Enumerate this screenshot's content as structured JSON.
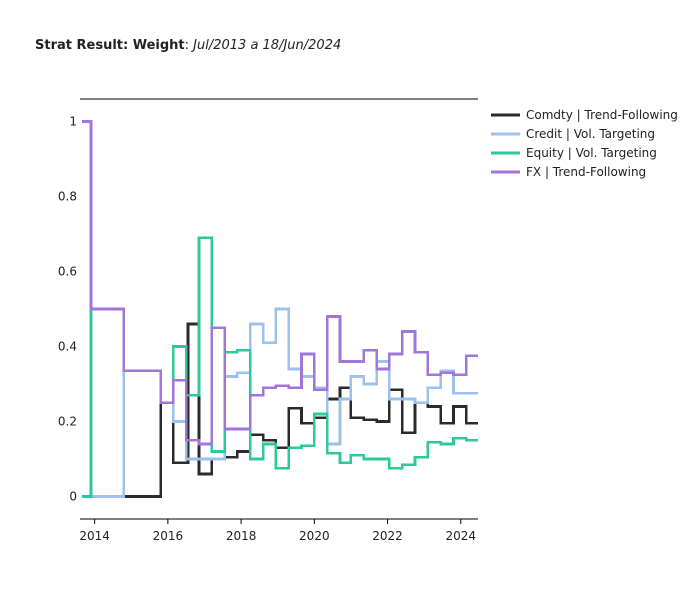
{
  "chart_data": {
    "type": "line",
    "line_shape": "step",
    "title": "Strat Result: Weight",
    "title_separator": ": ",
    "subtitle": "Jul/2013 a 18/Jun/2024",
    "xlabel": "",
    "ylabel": "",
    "xlim": [
      2013.6,
      2024.47
    ],
    "ylim": [
      -0.06,
      1.06
    ],
    "x_ticks": [
      2014,
      2016,
      2018,
      2020,
      2022,
      2024
    ],
    "y_ticks": [
      0,
      0.2,
      0.4,
      0.6,
      0.8,
      1
    ],
    "y_tick_labels": [
      "0",
      "0.2",
      "0.4",
      "0.6",
      "0.8",
      "1"
    ],
    "grid": false,
    "legend_position": "top-right",
    "series": [
      {
        "name": "Comdty | Trend-Following",
        "color": "#2b2b2b",
        "x": [
          2013.65,
          2014.8,
          2015.8,
          2016.15,
          2016.55,
          2016.85,
          2017.2,
          2017.55,
          2017.9,
          2018.25,
          2018.6,
          2018.95,
          2019.3,
          2019.65,
          2020.0,
          2020.35,
          2020.7,
          2021.0,
          2021.35,
          2021.7,
          2022.05,
          2022.4,
          2022.75,
          2023.1,
          2023.45,
          2023.8,
          2024.15,
          2024.45
        ],
        "y": [
          0,
          0,
          0.25,
          0.09,
          0.46,
          0.06,
          0.1,
          0.105,
          0.12,
          0.165,
          0.15,
          0.13,
          0.235,
          0.195,
          0.21,
          0.26,
          0.29,
          0.21,
          0.205,
          0.2,
          0.285,
          0.17,
          0.25,
          0.24,
          0.195,
          0.24,
          0.195,
          0.195
        ]
      },
      {
        "name": "Credit | Vol. Targeting",
        "color": "#9ec0ec",
        "x": [
          2013.65,
          2014.8,
          2015.8,
          2016.15,
          2016.5,
          2016.85,
          2017.2,
          2017.55,
          2017.9,
          2018.25,
          2018.6,
          2018.95,
          2019.3,
          2019.65,
          2020.0,
          2020.35,
          2020.7,
          2021.0,
          2021.35,
          2021.7,
          2022.05,
          2022.4,
          2022.75,
          2023.1,
          2023.45,
          2023.8,
          2024.15,
          2024.45
        ],
        "y": [
          0,
          0.335,
          0.25,
          0.2,
          0.1,
          0.1,
          0.1,
          0.32,
          0.33,
          0.46,
          0.41,
          0.5,
          0.34,
          0.32,
          0.29,
          0.14,
          0.26,
          0.32,
          0.3,
          0.36,
          0.26,
          0.26,
          0.25,
          0.29,
          0.335,
          0.275,
          0.275,
          0.275
        ]
      },
      {
        "name": "Equity | Vol. Targeting",
        "color": "#2ec89a",
        "x": [
          2013.65,
          2013.9,
          2014.8,
          2015.8,
          2016.15,
          2016.5,
          2016.85,
          2017.2,
          2017.55,
          2017.9,
          2018.25,
          2018.6,
          2018.95,
          2019.3,
          2019.65,
          2020.0,
          2020.35,
          2020.7,
          2021.0,
          2021.35,
          2021.7,
          2022.05,
          2022.4,
          2022.75,
          2023.1,
          2023.45,
          2023.8,
          2024.15,
          2024.45
        ],
        "y": [
          0,
          0.5,
          0.335,
          0.25,
          0.4,
          0.27,
          0.69,
          0.12,
          0.385,
          0.39,
          0.1,
          0.14,
          0.075,
          0.13,
          0.135,
          0.22,
          0.115,
          0.09,
          0.11,
          0.1,
          0.1,
          0.075,
          0.085,
          0.105,
          0.145,
          0.14,
          0.155,
          0.15,
          0.15
        ]
      },
      {
        "name": "FX | Trend-Following",
        "color": "#a176db",
        "x": [
          2013.65,
          2013.9,
          2014.8,
          2015.8,
          2016.15,
          2016.5,
          2016.85,
          2017.2,
          2017.55,
          2017.9,
          2018.25,
          2018.6,
          2018.95,
          2019.3,
          2019.65,
          2020.0,
          2020.35,
          2020.7,
          2021.0,
          2021.35,
          2021.7,
          2022.05,
          2022.4,
          2022.75,
          2023.1,
          2023.45,
          2023.8,
          2024.15,
          2024.45
        ],
        "y": [
          1.0,
          0.5,
          0.335,
          0.25,
          0.31,
          0.15,
          0.14,
          0.45,
          0.18,
          0.18,
          0.27,
          0.29,
          0.295,
          0.29,
          0.38,
          0.285,
          0.48,
          0.36,
          0.36,
          0.39,
          0.34,
          0.38,
          0.44,
          0.385,
          0.325,
          0.33,
          0.325,
          0.375,
          0.375
        ]
      }
    ]
  }
}
